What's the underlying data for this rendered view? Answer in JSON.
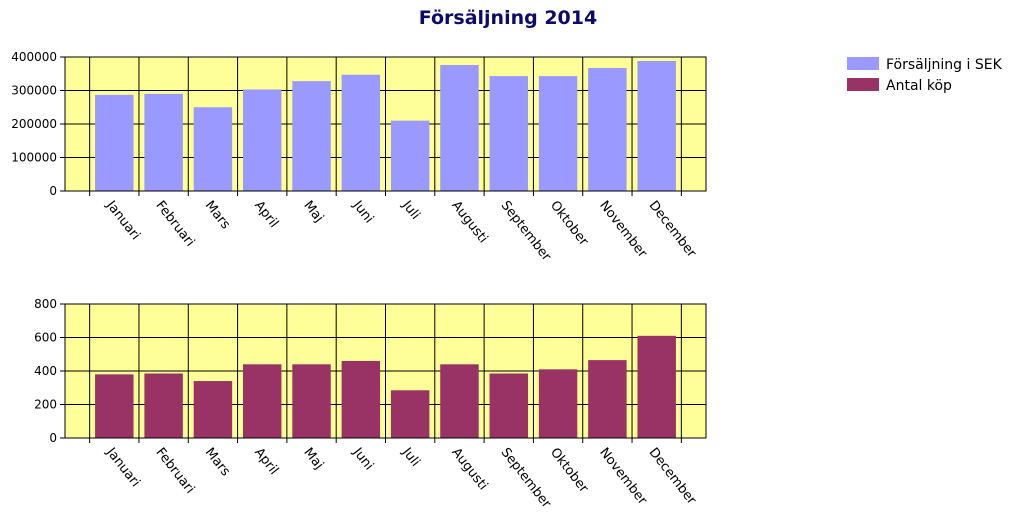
{
  "title": "Försäljning 2014",
  "legend": {
    "placement": "top-right",
    "items": [
      {
        "label": "Försäljning i SEK",
        "color": "#9999ff"
      },
      {
        "label": "Antal köp",
        "color": "#993366"
      }
    ]
  },
  "colors": {
    "plot_background": "#ffff99",
    "grid": "#000000",
    "title": "#0b0b6f"
  },
  "chart_data": [
    {
      "type": "bar",
      "series": [
        {
          "name": "Försäljning i SEK",
          "color": "#9999ff",
          "values": [
            287000,
            290000,
            250000,
            303000,
            328000,
            347000,
            210000,
            376000,
            343000,
            343000,
            367000,
            388000
          ]
        }
      ],
      "categories": [
        "Januari",
        "Februari",
        "Mars",
        "April",
        "Maj",
        "Juni",
        "Juli",
        "Augusti",
        "September",
        "Oktober",
        "November",
        "December"
      ],
      "yticks": [
        "0",
        "100000",
        "200000",
        "300000",
        "400000"
      ],
      "ylim": [
        0,
        400000
      ],
      "grid": true
    },
    {
      "type": "bar",
      "series": [
        {
          "name": "Antal köp",
          "color": "#993366",
          "values": [
            380,
            385,
            340,
            440,
            440,
            460,
            285,
            440,
            385,
            410,
            465,
            610
          ]
        }
      ],
      "categories": [
        "Januari",
        "Februari",
        "Mars",
        "April",
        "Maj",
        "Juni",
        "Juli",
        "Augusti",
        "September",
        "Oktober",
        "November",
        "December"
      ],
      "yticks": [
        "0",
        "200",
        "400",
        "600",
        "800"
      ],
      "ylim": [
        0,
        800
      ],
      "grid": true
    }
  ]
}
